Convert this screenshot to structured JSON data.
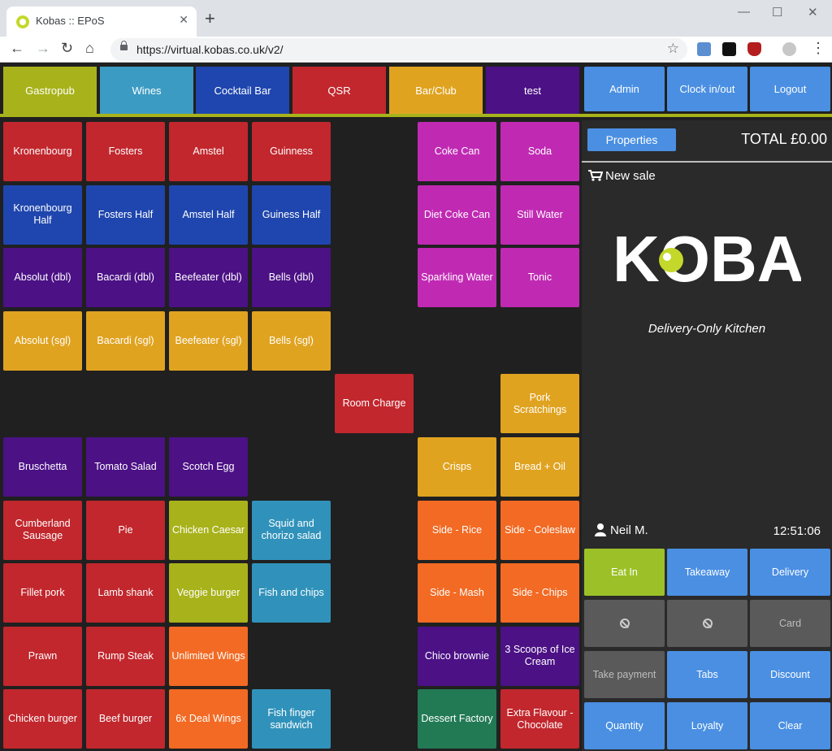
{
  "browser": {
    "tab_title": "Kobas :: EPoS",
    "url": "https://virtual.kobas.co.uk/v2/",
    "new_tab": "+",
    "tab_close": "✕",
    "minimize": "—",
    "maximize": "☐",
    "close": "✕",
    "back": "←",
    "forward": "→",
    "reload": "↻",
    "home": "⌂",
    "menu": "⋮",
    "star": "☆"
  },
  "categories": [
    {
      "label": "Gastropub",
      "color": "#a8b21a"
    },
    {
      "label": "Wines",
      "color": "#3c9bc2"
    },
    {
      "label": "Cocktail Bar",
      "color": "#1f46ae"
    },
    {
      "label": "QSR",
      "color": "#c1272d"
    },
    {
      "label": "Bar/Club",
      "color": "#e0a320"
    },
    {
      "label": "test",
      "color": "#4b1185"
    }
  ],
  "top_actions": [
    "Admin",
    "Clock in/out",
    "Logout"
  ],
  "colors": {
    "red": "#c1272d",
    "blue": "#1f46ae",
    "purple": "#4b1185",
    "yellow": "#e0a320",
    "magenta": "#c02ab3",
    "olive": "#a8b21a",
    "teal": "#3092ba",
    "orange": "#f26a23",
    "green": "#227a55",
    "action_blue": "#4a8fe2",
    "eat_in_green": "#9cc128"
  },
  "products": [
    {
      "label": "Kronenbourg",
      "col": 0,
      "row": 0,
      "color": "red"
    },
    {
      "label": "Fosters",
      "col": 1,
      "row": 0,
      "color": "red"
    },
    {
      "label": "Amstel",
      "col": 2,
      "row": 0,
      "color": "red"
    },
    {
      "label": "Guinness",
      "col": 3,
      "row": 0,
      "color": "red"
    },
    {
      "label": "Coke Can",
      "col": 5,
      "row": 0,
      "color": "magenta"
    },
    {
      "label": "Soda",
      "col": 6,
      "row": 0,
      "color": "magenta"
    },
    {
      "label": "Kronenbourg Half",
      "col": 0,
      "row": 1,
      "color": "blue"
    },
    {
      "label": "Fosters Half",
      "col": 1,
      "row": 1,
      "color": "blue"
    },
    {
      "label": "Amstel Half",
      "col": 2,
      "row": 1,
      "color": "blue"
    },
    {
      "label": "Guiness Half",
      "col": 3,
      "row": 1,
      "color": "blue"
    },
    {
      "label": "Diet Coke Can",
      "col": 5,
      "row": 1,
      "color": "magenta"
    },
    {
      "label": "Still Water",
      "col": 6,
      "row": 1,
      "color": "magenta"
    },
    {
      "label": "Absolut (dbl)",
      "col": 0,
      "row": 2,
      "color": "purple"
    },
    {
      "label": "Bacardi (dbl)",
      "col": 1,
      "row": 2,
      "color": "purple"
    },
    {
      "label": "Beefeater (dbl)",
      "col": 2,
      "row": 2,
      "color": "purple"
    },
    {
      "label": "Bells (dbl)",
      "col": 3,
      "row": 2,
      "color": "purple"
    },
    {
      "label": "Sparkling Water",
      "col": 5,
      "row": 2,
      "color": "magenta"
    },
    {
      "label": "Tonic",
      "col": 6,
      "row": 2,
      "color": "magenta"
    },
    {
      "label": "Absolut (sgl)",
      "col": 0,
      "row": 3,
      "color": "yellow"
    },
    {
      "label": "Bacardi (sgl)",
      "col": 1,
      "row": 3,
      "color": "yellow"
    },
    {
      "label": "Beefeater (sgl)",
      "col": 2,
      "row": 3,
      "color": "yellow"
    },
    {
      "label": "Bells (sgl)",
      "col": 3,
      "row": 3,
      "color": "yellow"
    },
    {
      "label": "Room Charge",
      "col": 4,
      "row": 4,
      "color": "red"
    },
    {
      "label": "Pork Scratchings",
      "col": 6,
      "row": 4,
      "color": "yellow"
    },
    {
      "label": "Bruschetta",
      "col": 0,
      "row": 5,
      "color": "purple"
    },
    {
      "label": "Tomato Salad",
      "col": 1,
      "row": 5,
      "color": "purple"
    },
    {
      "label": "Scotch Egg",
      "col": 2,
      "row": 5,
      "color": "purple"
    },
    {
      "label": "Crisps",
      "col": 5,
      "row": 5,
      "color": "yellow"
    },
    {
      "label": "Bread + Oil",
      "col": 6,
      "row": 5,
      "color": "yellow"
    },
    {
      "label": "Cumberland Sausage",
      "col": 0,
      "row": 6,
      "color": "red"
    },
    {
      "label": "Pie",
      "col": 1,
      "row": 6,
      "color": "red"
    },
    {
      "label": "Chicken Caesar",
      "col": 2,
      "row": 6,
      "color": "olive"
    },
    {
      "label": "Squid and chorizo salad",
      "col": 3,
      "row": 6,
      "color": "teal"
    },
    {
      "label": "Side - Rice",
      "col": 5,
      "row": 6,
      "color": "orange"
    },
    {
      "label": "Side - Coleslaw",
      "col": 6,
      "row": 6,
      "color": "orange"
    },
    {
      "label": "Fillet pork",
      "col": 0,
      "row": 7,
      "color": "red"
    },
    {
      "label": "Lamb shank",
      "col": 1,
      "row": 7,
      "color": "red"
    },
    {
      "label": "Veggie burger",
      "col": 2,
      "row": 7,
      "color": "olive"
    },
    {
      "label": "Fish and chips",
      "col": 3,
      "row": 7,
      "color": "teal"
    },
    {
      "label": "Side - Mash",
      "col": 5,
      "row": 7,
      "color": "orange"
    },
    {
      "label": "Side - Chips",
      "col": 6,
      "row": 7,
      "color": "orange"
    },
    {
      "label": "Prawn",
      "col": 0,
      "row": 8,
      "color": "red"
    },
    {
      "label": "Rump Steak",
      "col": 1,
      "row": 8,
      "color": "red"
    },
    {
      "label": "Unlimited Wings",
      "col": 2,
      "row": 8,
      "color": "orange"
    },
    {
      "label": "Chico brownie",
      "col": 5,
      "row": 8,
      "color": "purple"
    },
    {
      "label": "3 Scoops of Ice Cream",
      "col": 6,
      "row": 8,
      "color": "purple"
    },
    {
      "label": "Chicken burger",
      "col": 0,
      "row": 9,
      "color": "red"
    },
    {
      "label": "Beef burger",
      "col": 1,
      "row": 9,
      "color": "red"
    },
    {
      "label": "6x Deal Wings",
      "col": 2,
      "row": 9,
      "color": "orange"
    },
    {
      "label": "Fish finger sandwich",
      "col": 3,
      "row": 9,
      "color": "teal"
    },
    {
      "label": "Dessert Factory",
      "col": 5,
      "row": 9,
      "color": "green"
    },
    {
      "label": "Extra Flavour - Chocolate",
      "col": 6,
      "row": 9,
      "color": "red"
    }
  ],
  "sale_panel": {
    "properties_label": "Properties",
    "total": "TOTAL £0.00",
    "new_sale": "New sale",
    "logo_text": "KOBAS",
    "tagline": "Delivery-Only Kitchen",
    "user": "Neil M.",
    "time": "12:51:06"
  },
  "action_buttons": [
    {
      "label": "Eat In",
      "style": "green",
      "icon": ""
    },
    {
      "label": "Takeaway",
      "style": "blue",
      "icon": ""
    },
    {
      "label": "Delivery",
      "style": "blue",
      "icon": ""
    },
    {
      "label": "",
      "style": "grey",
      "icon": "ban-icon"
    },
    {
      "label": "",
      "style": "grey",
      "icon": "ban-icon"
    },
    {
      "label": "Card",
      "style": "grey",
      "icon": ""
    },
    {
      "label": "Take payment",
      "style": "grey",
      "icon": ""
    },
    {
      "label": "Tabs",
      "style": "blue",
      "icon": ""
    },
    {
      "label": "Discount",
      "style": "blue",
      "icon": ""
    },
    {
      "label": "Quantity",
      "style": "blue",
      "icon": ""
    },
    {
      "label": "Loyalty",
      "style": "blue",
      "icon": ""
    },
    {
      "label": "Clear",
      "style": "blue",
      "icon": ""
    }
  ]
}
